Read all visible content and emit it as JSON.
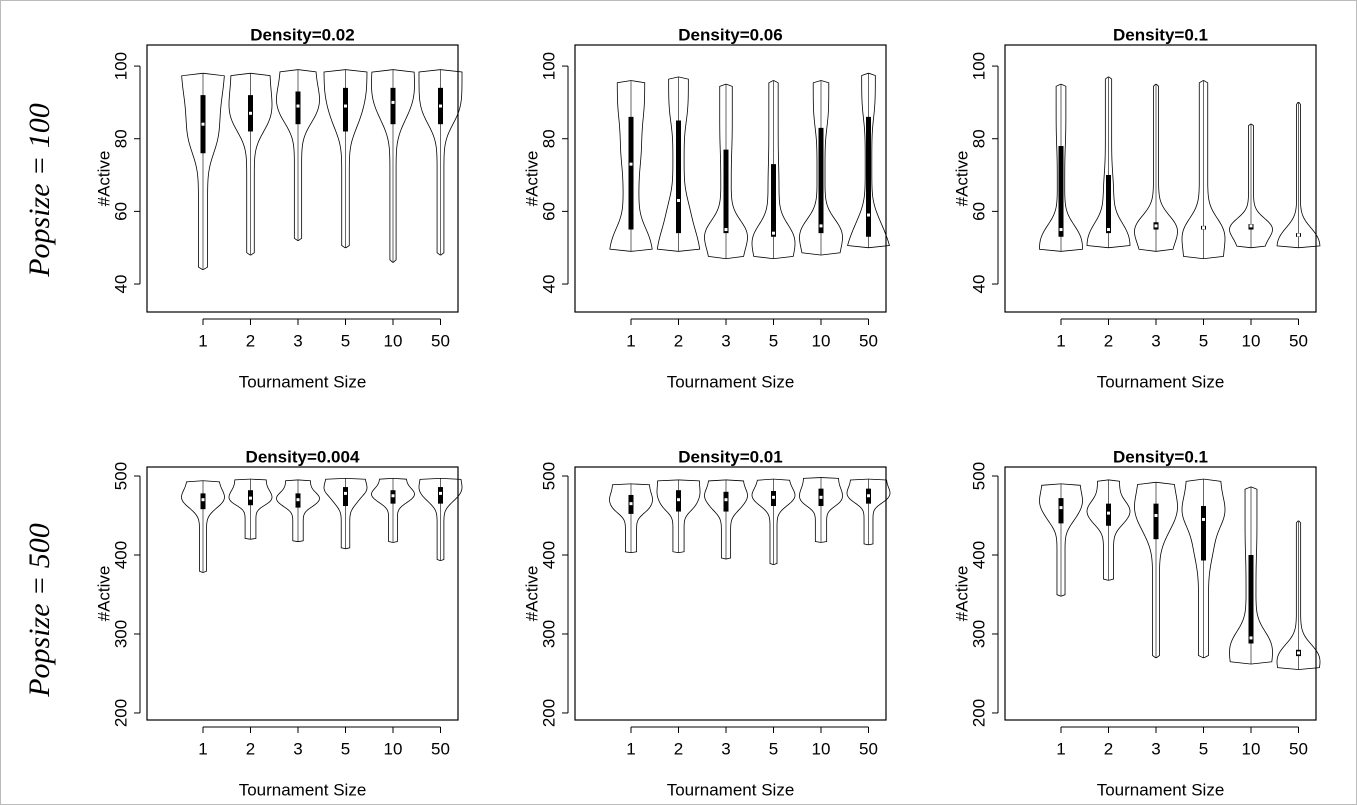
{
  "rows": [
    "Popsize = 100",
    "Popsize = 500"
  ],
  "chart_data": [
    {
      "type": "violin",
      "title": "Density=0.02",
      "xlabel": "Tournament Size",
      "ylabel": "#Active",
      "categories": [
        "1",
        "2",
        "3",
        "5",
        "10",
        "50"
      ],
      "ylim": [
        32.3,
        105.8
      ],
      "yticks": [
        40,
        60,
        80,
        100
      ],
      "stats": [
        {
          "min": 44,
          "q1": 76,
          "median": 84,
          "q3": 92,
          "max": 98
        },
        {
          "min": 48,
          "q1": 82,
          "median": 87,
          "q3": 92,
          "max": 98
        },
        {
          "min": 52,
          "q1": 84,
          "median": 89,
          "q3": 93,
          "max": 99
        },
        {
          "min": 50,
          "q1": 82,
          "median": 89,
          "q3": 94,
          "max": 99
        },
        {
          "min": 46,
          "q1": 84,
          "median": 90,
          "q3": 94,
          "max": 99
        },
        {
          "min": 48,
          "q1": 84,
          "median": 89,
          "q3": 94,
          "max": 99
        }
      ]
    },
    {
      "type": "violin",
      "title": "Density=0.06",
      "xlabel": "Tournament Size",
      "ylabel": "#Active",
      "categories": [
        "1",
        "2",
        "3",
        "5",
        "10",
        "50"
      ],
      "ylim": [
        32.3,
        105.8
      ],
      "yticks": [
        40,
        60,
        80,
        100
      ],
      "stats": [
        {
          "min": 49,
          "q1": 55,
          "median": 73,
          "q3": 86,
          "max": 96
        },
        {
          "min": 49,
          "q1": 54,
          "median": 63,
          "q3": 85,
          "max": 97
        },
        {
          "min": 47,
          "q1": 54,
          "median": 55,
          "q3": 77,
          "max": 95
        },
        {
          "min": 47,
          "q1": 53,
          "median": 54,
          "q3": 73,
          "max": 96
        },
        {
          "min": 48,
          "q1": 54,
          "median": 56,
          "q3": 83,
          "max": 96
        },
        {
          "min": 50,
          "q1": 53,
          "median": 59,
          "q3": 86,
          "max": 98
        }
      ]
    },
    {
      "type": "violin",
      "title": "Density=0.1",
      "xlabel": "Tournament Size",
      "ylabel": "#Active",
      "categories": [
        "1",
        "2",
        "3",
        "5",
        "10",
        "50"
      ],
      "ylim": [
        32.3,
        105.8
      ],
      "yticks": [
        40,
        60,
        80,
        100
      ],
      "stats": [
        {
          "min": 49,
          "q1": 53,
          "median": 55,
          "q3": 78,
          "max": 95
        },
        {
          "min": 50,
          "q1": 54,
          "median": 55,
          "q3": 70,
          "max": 97
        },
        {
          "min": 49,
          "q1": 55,
          "median": 56,
          "q3": 57,
          "max": 95
        },
        {
          "min": 47,
          "q1": 55,
          "median": 55.5,
          "q3": 56,
          "max": 96
        },
        {
          "min": 50,
          "q1": 55,
          "median": 56,
          "q3": 56.5,
          "max": 84
        },
        {
          "min": 50,
          "q1": 53,
          "median": 53.5,
          "q3": 54,
          "max": 90
        }
      ]
    },
    {
      "type": "violin",
      "title": "Density=0.004",
      "xlabel": "Tournament Size",
      "ylabel": "#Active",
      "categories": [
        "1",
        "2",
        "3",
        "5",
        "10",
        "50"
      ],
      "ylim": [
        191.1,
        511.4
      ],
      "yticks": [
        200,
        300,
        400,
        500
      ],
      "stats": [
        {
          "min": 378,
          "q1": 458,
          "median": 470,
          "q3": 478,
          "max": 494
        },
        {
          "min": 420,
          "q1": 463,
          "median": 472,
          "q3": 482,
          "max": 496
        },
        {
          "min": 417,
          "q1": 460,
          "median": 470,
          "q3": 478,
          "max": 495
        },
        {
          "min": 408,
          "q1": 462,
          "median": 478,
          "q3": 486,
          "max": 497
        },
        {
          "min": 416,
          "q1": 465,
          "median": 475,
          "q3": 482,
          "max": 497
        },
        {
          "min": 393,
          "q1": 465,
          "median": 478,
          "q3": 486,
          "max": 497
        }
      ]
    },
    {
      "type": "violin",
      "title": "Density=0.01",
      "xlabel": "Tournament Size",
      "ylabel": "#Active",
      "categories": [
        "1",
        "2",
        "3",
        "5",
        "10",
        "50"
      ],
      "ylim": [
        191.1,
        511.4
      ],
      "yticks": [
        200,
        300,
        400,
        500
      ],
      "stats": [
        {
          "min": 403,
          "q1": 452,
          "median": 465,
          "q3": 476,
          "max": 490
        },
        {
          "min": 403,
          "q1": 455,
          "median": 470,
          "q3": 482,
          "max": 495
        },
        {
          "min": 395,
          "q1": 455,
          "median": 470,
          "q3": 480,
          "max": 495
        },
        {
          "min": 388,
          "q1": 462,
          "median": 473,
          "q3": 481,
          "max": 496
        },
        {
          "min": 416,
          "q1": 462,
          "median": 473,
          "q3": 484,
          "max": 498
        },
        {
          "min": 413,
          "q1": 465,
          "median": 475,
          "q3": 484,
          "max": 496
        }
      ]
    },
    {
      "type": "violin",
      "title": "Density=0.1",
      "xlabel": "Tournament Size",
      "ylabel": "#Active",
      "categories": [
        "1",
        "2",
        "3",
        "5",
        "10",
        "50"
      ],
      "ylim": [
        191.1,
        511.4
      ],
      "yticks": [
        200,
        300,
        400,
        500
      ],
      "stats": [
        {
          "min": 348,
          "q1": 440,
          "median": 460,
          "q3": 472,
          "max": 490
        },
        {
          "min": 368,
          "q1": 437,
          "median": 453,
          "q3": 465,
          "max": 495
        },
        {
          "min": 270,
          "q1": 420,
          "median": 450,
          "q3": 465,
          "max": 492
        },
        {
          "min": 270,
          "q1": 393,
          "median": 445,
          "q3": 462,
          "max": 496
        },
        {
          "min": 262,
          "q1": 288,
          "median": 295,
          "q3": 400,
          "max": 486
        },
        {
          "min": 255,
          "q1": 272,
          "median": 276,
          "q3": 280,
          "max": 443
        }
      ]
    }
  ]
}
